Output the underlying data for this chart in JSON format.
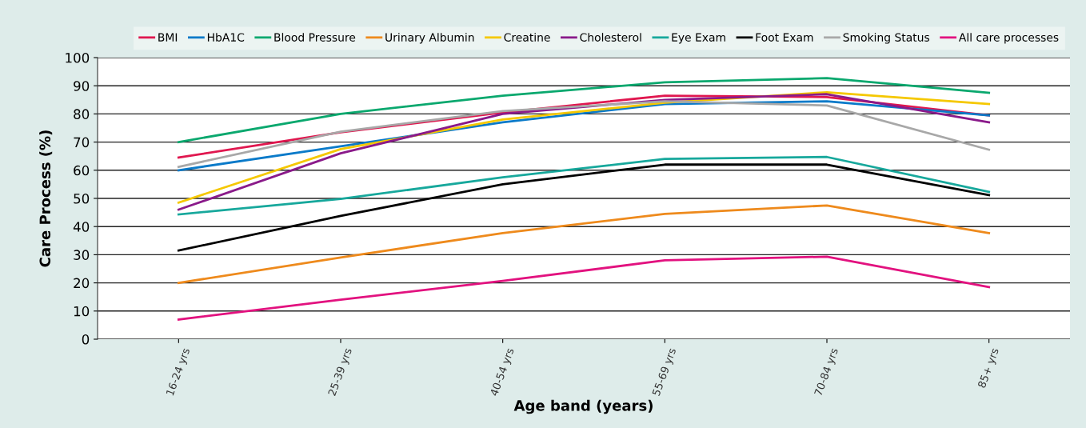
{
  "chart_data": {
    "type": "line",
    "xlabel": "Age band (years)",
    "ylabel": "Care Process (%)",
    "categories": [
      "16-24 yrs",
      "25-39 yrs",
      "40-54 yrs",
      "55-69 yrs",
      "70-84 yrs",
      "85+ yrs"
    ],
    "ylim": [
      0,
      100
    ],
    "yticks": [
      0,
      10,
      20,
      30,
      40,
      50,
      60,
      70,
      80,
      90,
      100
    ],
    "grid": "y",
    "legend": "top",
    "marker": "none",
    "line_style": "solid",
    "series": [
      {
        "name": "BMI",
        "color": "#e0174f",
        "values": [
          64.5,
          73.5,
          80.5,
          86.5,
          86,
          79.5
        ]
      },
      {
        "name": "HbA1C",
        "color": "#0a7ac9",
        "values": [
          60,
          68.5,
          77,
          83.5,
          84.5,
          79.5
        ]
      },
      {
        "name": "Blood Pressure",
        "color": "#0aa86e",
        "values": [
          70,
          80,
          86.5,
          91.2,
          92.7,
          87.5
        ]
      },
      {
        "name": "Urinary Albumin",
        "color": "#ee8a1c",
        "values": [
          20,
          29,
          37.7,
          44.5,
          47.5,
          37.7
        ]
      },
      {
        "name": "Creatine",
        "color": "#f5c800",
        "values": [
          48.5,
          67.5,
          78,
          84,
          87.7,
          83.5
        ]
      },
      {
        "name": "Cholesterol",
        "color": "#8a1a8a",
        "values": [
          46,
          66,
          80,
          85,
          87,
          77
        ]
      },
      {
        "name": "Eye Exam",
        "color": "#17a89c",
        "values": [
          44.3,
          49.8,
          57.5,
          64,
          64.7,
          52.3
        ]
      },
      {
        "name": "Foot Exam",
        "color": "#000000",
        "values": [
          31.5,
          43.8,
          55,
          62,
          62,
          51.2
        ]
      },
      {
        "name": "Smoking Status",
        "color": "#a8a8a8",
        "values": [
          61.2,
          73.7,
          81,
          84.5,
          83,
          67.3
        ]
      },
      {
        "name": "All care processes",
        "color": "#e2127f",
        "values": [
          7,
          14,
          20.7,
          28,
          29.3,
          18.5
        ]
      }
    ]
  }
}
